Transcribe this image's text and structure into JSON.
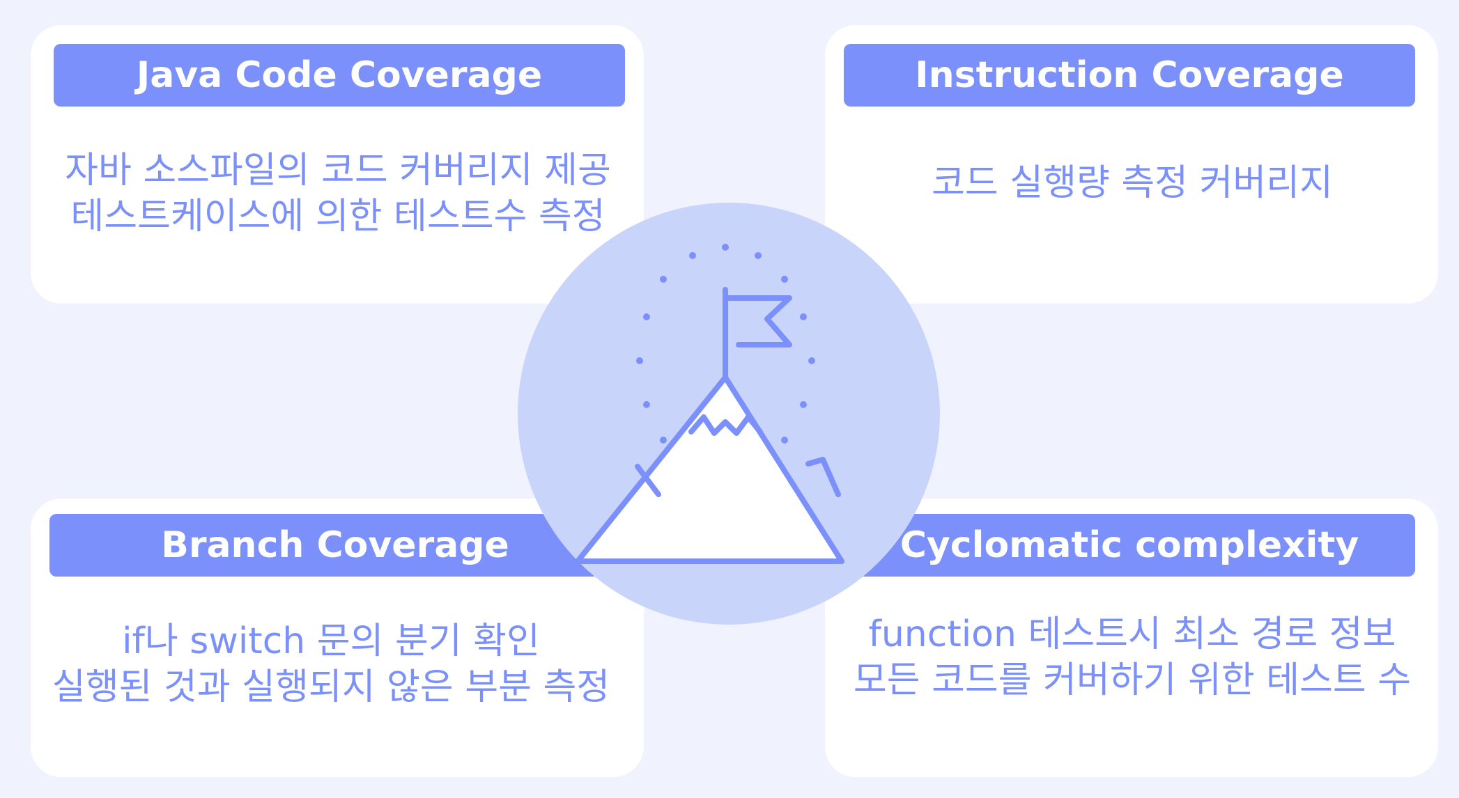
{
  "cards": [
    {
      "id": "java-code-coverage",
      "title": "Java Code Coverage",
      "lines": [
        "자바 소스파일의 코드 커버리지 제공",
        "테스트케이스에 의한 테스트수 측정"
      ]
    },
    {
      "id": "instruction-coverage",
      "title": "Instruction Coverage",
      "lines": [
        "코드 실행량 측정 커버리지"
      ]
    },
    {
      "id": "branch-coverage",
      "title": "Branch Coverage",
      "lines": [
        "if나 switch 문의 분기 확인",
        "실행된 것과 실행되지 않은 부분 측정"
      ]
    },
    {
      "id": "cyclomatic-complexity",
      "title": "Cyclomatic complexity",
      "lines": [
        "function 테스트시 최소 경로 정보",
        "모든 코드를 커버하기 위한 테스트 수"
      ]
    }
  ],
  "center_icon": "mountain-flag-icon",
  "colors": {
    "background": "#f0f3fe",
    "card": "#ffffff",
    "accent": "#7b90fa",
    "circle": "#c9d4fb"
  }
}
